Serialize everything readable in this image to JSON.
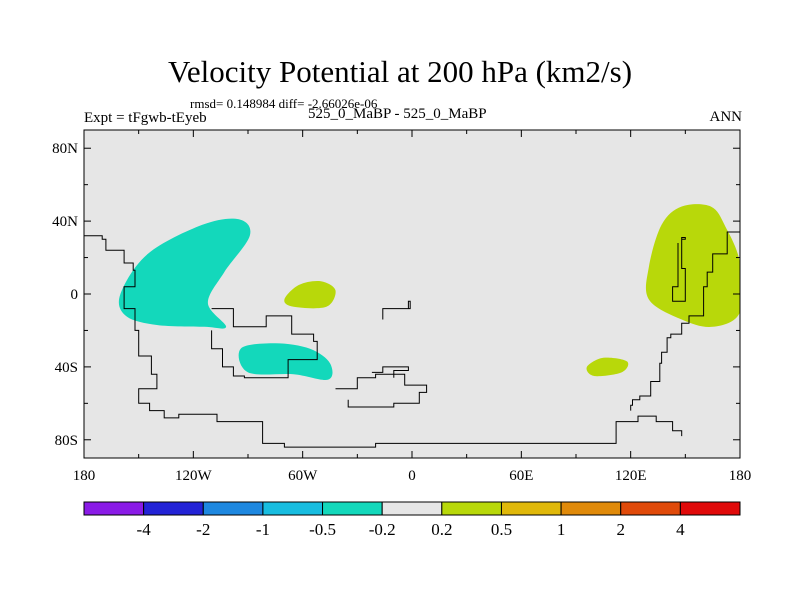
{
  "chart_data": {
    "type": "heatmap",
    "title": "Velocity Potential at 200 hPa (km2/s)",
    "subtitle": "rmsd= 0.148984 diff= -2.66026e-06",
    "left_label": "Expt = tFgwb-tEyeb",
    "center_label": "525_0_MaBP - 525_0_MaBP",
    "right_label": "ANN",
    "x_axis": {
      "range": [
        -180,
        180
      ],
      "ticks": [
        {
          "value": -180,
          "label": "180"
        },
        {
          "value": -120,
          "label": "120W"
        },
        {
          "value": -60,
          "label": "60W"
        },
        {
          "value": 0,
          "label": "0"
        },
        {
          "value": 60,
          "label": "60E"
        },
        {
          "value": 120,
          "label": "120E"
        },
        {
          "value": 180,
          "label": "180"
        }
      ]
    },
    "y_axis": {
      "range": [
        -90,
        90
      ],
      "ticks": [
        {
          "value": 80,
          "label": "80N"
        },
        {
          "value": 40,
          "label": "40N"
        },
        {
          "value": 0,
          "label": "0"
        },
        {
          "value": -40,
          "label": "40S"
        },
        {
          "value": -80,
          "label": "80S"
        }
      ]
    },
    "colorbar": {
      "colors": [
        "#8a1be6",
        "#2323d6",
        "#1e88e0",
        "#18bde0",
        "#13d8bb",
        "#e6e6e6",
        "#b8d80a",
        "#e0b80a",
        "#e08a0a",
        "#e04a0a",
        "#e00a0a"
      ],
      "boundaries": [
        "-4",
        "-2",
        "-1",
        "-0.5",
        "-0.2",
        "0.2",
        "0.5",
        "1",
        "2",
        "4"
      ]
    },
    "regions": [
      {
        "name": "central-pacific-negative",
        "value_band": "-0.5 to -0.2",
        "color": "#13d8bb",
        "outline": [
          [
            -160,
            0
          ],
          [
            -145,
            22
          ],
          [
            -115,
            38
          ],
          [
            -95,
            41
          ],
          [
            -89,
            32
          ],
          [
            -103,
            12
          ],
          [
            -112,
            -5
          ],
          [
            -102,
            -18
          ],
          [
            -114,
            -18
          ],
          [
            -140,
            -17
          ],
          [
            -157,
            -12
          ]
        ]
      },
      {
        "name": "south-america-negative",
        "value_band": "-0.5 to -0.2",
        "color": "#13d8bb",
        "outline": [
          [
            -94,
            -30
          ],
          [
            -75,
            -27
          ],
          [
            -56,
            -30
          ],
          [
            -45,
            -38
          ],
          [
            -46,
            -47
          ],
          [
            -65,
            -44
          ],
          [
            -90,
            -43
          ]
        ]
      },
      {
        "name": "atlantic-positive",
        "value_band": "0.2 to 0.5",
        "color": "#b8d80a",
        "outline": [
          [
            -70,
            -3
          ],
          [
            -62,
            5
          ],
          [
            -50,
            7
          ],
          [
            -42,
            2
          ],
          [
            -47,
            -7
          ],
          [
            -65,
            -7
          ]
        ]
      },
      {
        "name": "west-pacific-positive",
        "value_band": "0.2 to 0.5",
        "color": "#b8d80a",
        "outline": [
          [
            130,
            15
          ],
          [
            137,
            38
          ],
          [
            148,
            48
          ],
          [
            164,
            48
          ],
          [
            172,
            37
          ],
          [
            180,
            17
          ],
          [
            180,
            -10
          ],
          [
            165,
            -18
          ],
          [
            148,
            -14
          ],
          [
            130,
            -3
          ]
        ]
      },
      {
        "name": "indian-ocean-positive",
        "value_band": "0.2 to 0.5",
        "color": "#b8d80a",
        "outline": [
          [
            96,
            -40
          ],
          [
            105,
            -35
          ],
          [
            118,
            -37
          ],
          [
            115,
            -43
          ],
          [
            100,
            -45
          ]
        ]
      }
    ],
    "land_outlines": [
      [
        [
          -180,
          32
        ],
        [
          -170,
          30
        ],
        [
          -168,
          24
        ],
        [
          -158,
          17
        ],
        [
          -153,
          13
        ],
        [
          -152,
          4
        ],
        [
          -158,
          -8
        ],
        [
          -152,
          -20
        ],
        [
          -150,
          -34
        ],
        [
          -143,
          -44
        ],
        [
          -140,
          -52
        ],
        [
          -150,
          -60
        ],
        [
          -144,
          -64
        ],
        [
          -136,
          -68
        ],
        [
          -128,
          -66
        ],
        [
          -119,
          -66
        ],
        [
          -107,
          -70
        ],
        [
          -82,
          -82
        ],
        [
          -70,
          -82
        ],
        [
          -70,
          -84
        ],
        [
          -20,
          -82
        ],
        [
          0,
          -82
        ],
        [
          60,
          -82
        ],
        [
          112,
          -82
        ],
        [
          112,
          -70
        ],
        [
          120,
          -70
        ],
        [
          124,
          -67
        ],
        [
          134,
          -70
        ],
        [
          143,
          -75
        ],
        [
          148,
          -78
        ]
      ],
      [
        [
          -110,
          -8
        ],
        [
          -102,
          -8
        ],
        [
          -98,
          -18
        ],
        [
          -86,
          -18
        ],
        [
          -80,
          -12
        ],
        [
          -68,
          -12
        ],
        [
          -66,
          -22
        ],
        [
          -54,
          -26
        ],
        [
          -52,
          -36
        ],
        [
          -68,
          -46
        ],
        [
          -92,
          -45
        ],
        [
          -98,
          -40
        ],
        [
          -104,
          -30
        ],
        [
          -110,
          -20
        ]
      ],
      [
        [
          180,
          34
        ],
        [
          173,
          30
        ],
        [
          173,
          22
        ],
        [
          165,
          12
        ],
        [
          162,
          4
        ],
        [
          160,
          -2
        ],
        [
          160,
          -12
        ],
        [
          152,
          -16
        ],
        [
          148,
          -22
        ],
        [
          142,
          -24
        ],
        [
          140,
          -32
        ],
        [
          137,
          -38
        ],
        [
          136,
          -48
        ],
        [
          131,
          -56
        ],
        [
          125,
          -58
        ],
        [
          121,
          -61
        ],
        [
          120,
          -64
        ]
      ],
      [
        [
          148,
          30
        ],
        [
          150,
          31
        ],
        [
          148,
          14
        ],
        [
          150,
          -4
        ],
        [
          144,
          -4
        ],
        [
          143,
          4
        ],
        [
          146,
          14
        ],
        [
          146,
          28
        ]
      ],
      [
        [
          -15,
          -8
        ],
        [
          -2,
          -4
        ],
        [
          -1,
          -8
        ],
        [
          -16,
          -14
        ]
      ],
      [
        [
          -42,
          -52
        ],
        [
          -30,
          -46
        ],
        [
          -20,
          -44
        ],
        [
          -4,
          -50
        ],
        [
          8,
          -54
        ],
        [
          4,
          -60
        ],
        [
          -10,
          -62
        ],
        [
          -35,
          -58
        ]
      ],
      [
        [
          -22,
          -43
        ],
        [
          -16,
          -40
        ],
        [
          -2,
          -42
        ],
        [
          -10,
          -46
        ]
      ]
    ]
  }
}
